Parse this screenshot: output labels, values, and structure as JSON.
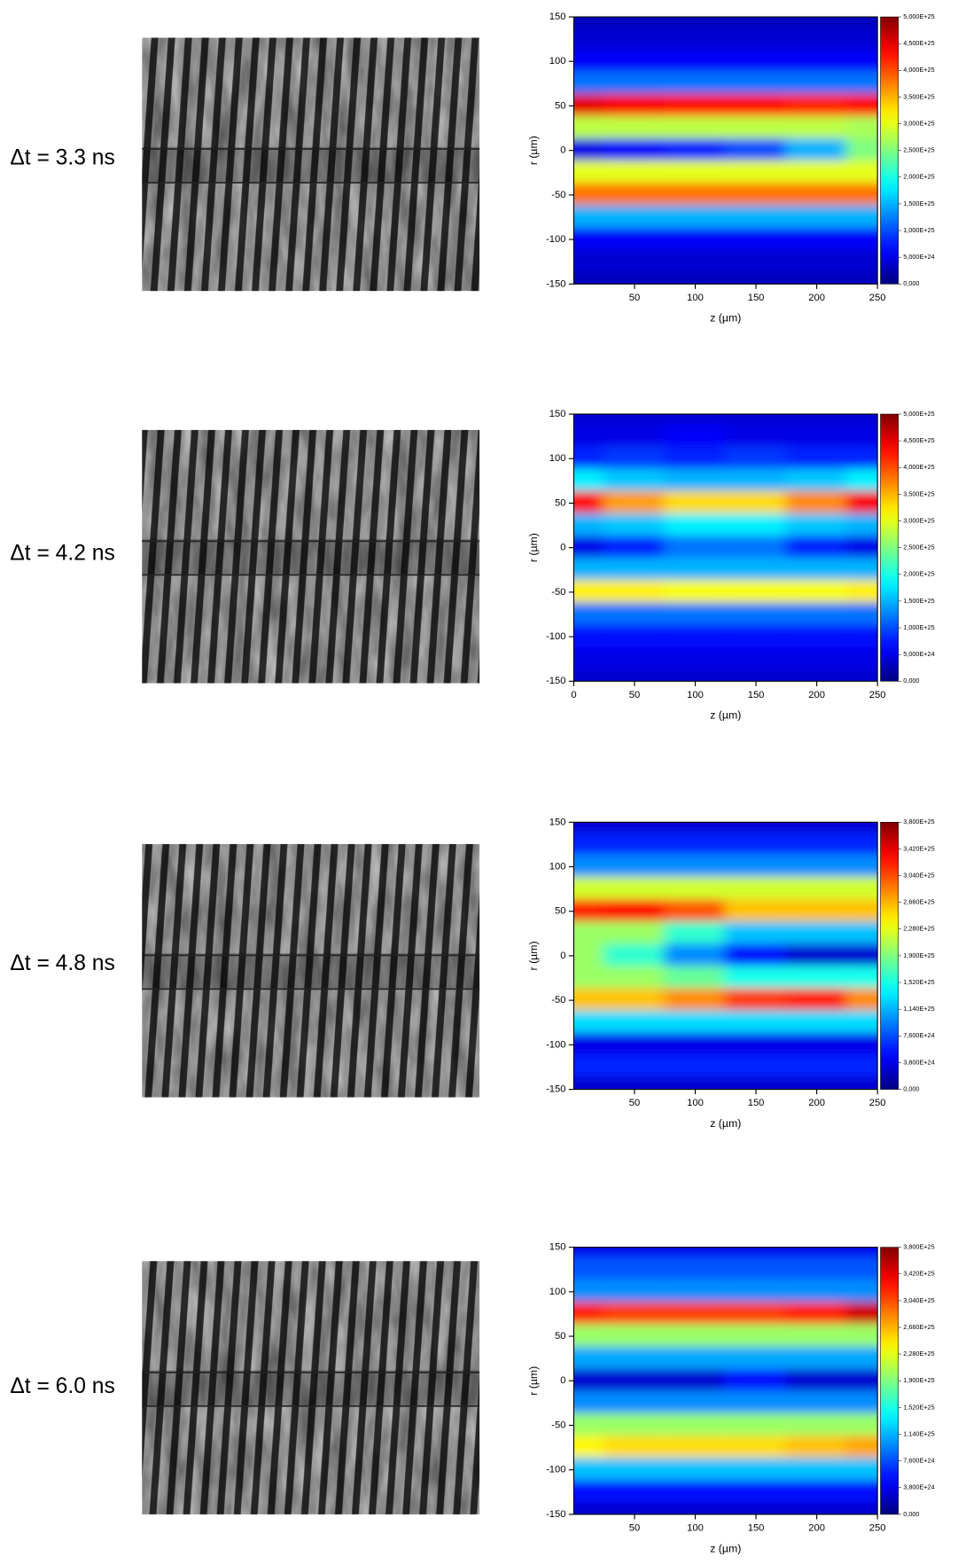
{
  "chart_data": [
    {
      "type": "heatmap",
      "annotation": "Δt = 3.3 ns",
      "xlabel": "z (µm)",
      "ylabel": "r (µm)",
      "colormap": "jet",
      "x": [
        0,
        50,
        100,
        150,
        200,
        250
      ],
      "y": [
        150,
        125,
        100,
        75,
        50,
        25,
        0,
        -25,
        -50,
        -75,
        -100,
        -125,
        -150
      ],
      "values": [
        [
          3e+24,
          3e+24,
          3e+24,
          3e+24,
          3e+24,
          3e+24
        ],
        [
          4e+24,
          4e+24,
          4e+24,
          4e+24,
          4e+24,
          4e+24
        ],
        [
          6e+24,
          6e+24,
          6e+24,
          6e+24,
          6e+24,
          6e+24
        ],
        [
          1.2e+25,
          1.2e+25,
          1.2e+25,
          1.2e+25,
          1.2e+25,
          1.2e+25
        ],
        [
          4.5e+25,
          4.4e+25,
          4.3e+25,
          4.3e+25,
          4.2e+25,
          4.3e+25
        ],
        [
          2.8e+25,
          2.8e+25,
          2.8e+25,
          2.8e+25,
          2.8e+25,
          2.7e+25
        ],
        [
          5e+24,
          6e+24,
          8e+24,
          1e+25,
          1.5e+25,
          2.5e+25
        ],
        [
          3e+25,
          3e+25,
          3e+25,
          3e+25,
          3e+25,
          3e+25
        ],
        [
          3.8e+25,
          3.8e+25,
          3.8e+25,
          3.8e+25,
          3.8e+25,
          3.8e+25
        ],
        [
          1.5e+25,
          1.5e+25,
          1.5e+25,
          1.5e+25,
          1.5e+25,
          1.5e+25
        ],
        [
          6e+24,
          6e+24,
          6e+24,
          6e+24,
          6e+24,
          6e+24
        ],
        [
          4e+24,
          4e+24,
          4e+24,
          4e+24,
          4e+24,
          4e+24
        ],
        [
          3e+24,
          3e+24,
          3e+24,
          3e+24,
          3e+24,
          3e+24
        ]
      ],
      "xlim": [
        0,
        250
      ],
      "xticks": [
        50,
        100,
        150,
        200,
        250
      ],
      "ylim": [
        -150,
        150
      ],
      "yticks": [
        150,
        100,
        50,
        0,
        -50,
        -100,
        -150
      ],
      "zlim": [
        0,
        5e+25
      ],
      "zticks": [
        {
          "value": 0,
          "label": "0,000"
        },
        {
          "value": 5e+24,
          "label": "5,000E+24"
        },
        {
          "value": 1e+25,
          "label": "1,000E+25"
        },
        {
          "value": 1.5e+25,
          "label": "1,500E+25"
        },
        {
          "value": 2e+25,
          "label": "2,000E+25"
        },
        {
          "value": 2.5e+25,
          "label": "2,500E+25"
        },
        {
          "value": 3e+25,
          "label": "3,000E+25"
        },
        {
          "value": 3.5e+25,
          "label": "3,500E+25"
        },
        {
          "value": 4e+25,
          "label": "4,000E+25"
        },
        {
          "value": 4.5e+25,
          "label": "4,500E+25"
        },
        {
          "value": 5e+25,
          "label": "5,000E+25"
        }
      ]
    },
    {
      "type": "heatmap",
      "annotation": "Δt = 4.2 ns",
      "xlabel": "z (µm)",
      "ylabel": "r (µm)",
      "colormap": "jet",
      "x": [
        0,
        50,
        100,
        150,
        200,
        250
      ],
      "y": [
        150,
        125,
        100,
        75,
        50,
        25,
        0,
        -25,
        -50,
        -75,
        -100,
        -125,
        -150
      ],
      "values": [
        [
          4e+24,
          4e+24,
          4e+24,
          4e+24,
          4e+24,
          4e+24
        ],
        [
          5e+24,
          5e+24,
          6e+24,
          5e+24,
          5e+24,
          5e+24
        ],
        [
          8e+24,
          9e+24,
          8e+24,
          9e+24,
          8e+24,
          8e+24
        ],
        [
          1.8e+25,
          1.6e+25,
          1.5e+25,
          1.5e+25,
          1.6e+25,
          1.8e+25
        ],
        [
          4.3e+25,
          3.6e+25,
          3.3e+25,
          3.3e+25,
          3.7e+25,
          4.4e+25
        ],
        [
          1.5e+25,
          1.6e+25,
          1.8e+25,
          1.8e+25,
          1.6e+25,
          1.5e+25
        ],
        [
          5e+24,
          8e+24,
          1.2e+25,
          1.2e+25,
          8e+24,
          5e+24
        ],
        [
          1.5e+25,
          1.5e+25,
          1.5e+25,
          1.5e+25,
          1.5e+25,
          1.5e+25
        ],
        [
          3.2e+25,
          3.2e+25,
          3.1e+25,
          3.1e+25,
          3.1e+25,
          3.2e+25
        ],
        [
          1.2e+25,
          1.2e+25,
          1.2e+25,
          1.2e+25,
          1.2e+25,
          1.2e+25
        ],
        [
          7e+24,
          7e+24,
          7e+24,
          7e+24,
          7e+24,
          7e+24
        ],
        [
          5e+24,
          5e+24,
          5e+24,
          5e+24,
          5e+24,
          5e+24
        ],
        [
          4e+24,
          4e+24,
          4e+24,
          4e+24,
          4e+24,
          4e+24
        ]
      ],
      "xlim": [
        0,
        250
      ],
      "xticks": [
        0,
        50,
        100,
        150,
        200,
        250
      ],
      "ylim": [
        -150,
        150
      ],
      "yticks": [
        150,
        100,
        50,
        0,
        -50,
        -100,
        -150
      ],
      "zlim": [
        0,
        5e+25
      ],
      "zticks": [
        {
          "value": 0,
          "label": "0,000"
        },
        {
          "value": 5e+24,
          "label": "5,000E+24"
        },
        {
          "value": 1e+25,
          "label": "1,000E+25"
        },
        {
          "value": 1.5e+25,
          "label": "1,500E+25"
        },
        {
          "value": 2e+25,
          "label": "2,000E+25"
        },
        {
          "value": 2.5e+25,
          "label": "2,500E+25"
        },
        {
          "value": 3e+25,
          "label": "3,000E+25"
        },
        {
          "value": 3.5e+25,
          "label": "3,500E+25"
        },
        {
          "value": 4e+25,
          "label": "4,000E+25"
        },
        {
          "value": 4.5e+25,
          "label": "4,500E+25"
        },
        {
          "value": 5e+25,
          "label": "5,000E+25"
        }
      ]
    },
    {
      "type": "heatmap",
      "annotation": "Δt = 4.8 ns",
      "xlabel": "z (µm)",
      "ylabel": "r (µm)",
      "colormap": "jet",
      "x": [
        0,
        50,
        100,
        150,
        200,
        250
      ],
      "y": [
        150,
        125,
        100,
        75,
        50,
        25,
        0,
        -25,
        -50,
        -75,
        -100,
        -125,
        -150
      ],
      "values": [
        [
          3e+24,
          3e+24,
          3e+24,
          3e+24,
          3e+24,
          3e+24
        ],
        [
          6e+24,
          6e+24,
          6e+24,
          6e+24,
          6e+24,
          6e+24
        ],
        [
          1e+25,
          1e+25,
          1e+25,
          1e+25,
          1e+25,
          1e+25
        ],
        [
          2.2e+25,
          2.2e+25,
          2.2e+25,
          2.2e+25,
          2.2e+25,
          2.2e+25
        ],
        [
          3.2e+25,
          3.3e+25,
          3e+25,
          2.6e+25,
          2.6e+25,
          2.6e+25
        ],
        [
          2e+25,
          2e+25,
          1.6e+25,
          1.2e+25,
          1.2e+25,
          1.2e+25
        ],
        [
          2e+25,
          1.6e+25,
          1e+25,
          5e+24,
          3e+24,
          3e+24
        ],
        [
          2e+25,
          2e+25,
          1.8e+25,
          1.5e+25,
          1.5e+25,
          1.5e+25
        ],
        [
          2.6e+25,
          2.6e+25,
          2.8e+25,
          3.1e+25,
          3.2e+25,
          2.8e+25
        ],
        [
          1.3e+25,
          1.3e+25,
          1.3e+25,
          1.3e+25,
          1.3e+25,
          1.3e+25
        ],
        [
          4e+24,
          4e+24,
          4e+24,
          4e+24,
          4e+24,
          4e+24
        ],
        [
          6e+24,
          6e+24,
          6e+24,
          6e+24,
          6e+24,
          6e+24
        ],
        [
          3e+24,
          3e+24,
          3e+24,
          3e+24,
          3e+24,
          3e+24
        ]
      ],
      "xlim": [
        0,
        250
      ],
      "xticks": [
        50,
        100,
        150,
        200,
        250
      ],
      "ylim": [
        -150,
        150
      ],
      "yticks": [
        150,
        100,
        50,
        0,
        -50,
        -100,
        -150
      ],
      "zlim": [
        0,
        3.8e+25
      ],
      "zticks": [
        {
          "value": 0,
          "label": "0,000"
        },
        {
          "value": 3.8e+24,
          "label": "3,800E+24"
        },
        {
          "value": 7.6e+24,
          "label": "7,600E+24"
        },
        {
          "value": 1.14e+25,
          "label": "1,140E+25"
        },
        {
          "value": 1.52e+25,
          "label": "1,520E+25"
        },
        {
          "value": 1.9e+25,
          "label": "1,900E+25"
        },
        {
          "value": 2.28e+25,
          "label": "2,280E+25"
        },
        {
          "value": 2.66e+25,
          "label": "2,660E+25"
        },
        {
          "value": 3.04e+25,
          "label": "3,040E+25"
        },
        {
          "value": 3.42e+25,
          "label": "3,420E+25"
        },
        {
          "value": 3.8e+25,
          "label": "3,800E+25"
        }
      ]
    },
    {
      "type": "heatmap",
      "annotation": "Δt = 6.0 ns",
      "xlabel": "z (µm)",
      "ylabel": "r (µm)",
      "colormap": "jet",
      "x": [
        0,
        50,
        100,
        150,
        200,
        250
      ],
      "y": [
        150,
        125,
        100,
        75,
        50,
        25,
        0,
        -25,
        -50,
        -75,
        -100,
        -125,
        -150
      ],
      "values": [
        [
          4e+24,
          4e+24,
          4e+24,
          4e+24,
          4e+24,
          4e+24
        ],
        [
          8e+24,
          8e+24,
          8e+24,
          8e+24,
          8e+24,
          8e+24
        ],
        [
          1e+25,
          1e+25,
          1e+25,
          1e+25,
          1e+25,
          1e+25
        ],
        [
          3.2e+25,
          3.1e+25,
          3.1e+25,
          3.1e+25,
          3.2e+25,
          3.5e+25
        ],
        [
          2e+25,
          2e+25,
          2e+25,
          2e+25,
          2e+25,
          2e+25
        ],
        [
          1.1e+25,
          1.1e+25,
          1.1e+25,
          1.1e+25,
          1.1e+25,
          1.1e+25
        ],
        [
          3e+24,
          3e+24,
          3e+24,
          5e+24,
          3e+24,
          3e+24
        ],
        [
          1e+25,
          1e+25,
          1e+25,
          1e+25,
          1e+25,
          1e+25
        ],
        [
          2e+25,
          2e+25,
          2e+25,
          2e+25,
          2e+25,
          2e+25
        ],
        [
          2.4e+25,
          2.5e+25,
          2.5e+25,
          2.5e+25,
          2.6e+25,
          2.7e+25
        ],
        [
          1.2e+25,
          1.2e+25,
          1.2e+25,
          1.2e+25,
          1.2e+25,
          1.2e+25
        ],
        [
          5e+24,
          5e+24,
          5e+24,
          5e+24,
          5e+24,
          5e+24
        ],
        [
          3e+24,
          3e+24,
          3e+24,
          3e+24,
          3e+24,
          3e+24
        ]
      ],
      "xlim": [
        0,
        250
      ],
      "xticks": [
        50,
        100,
        150,
        200,
        250
      ],
      "ylim": [
        -150,
        150
      ],
      "yticks": [
        150,
        100,
        50,
        0,
        -50,
        -100,
        -150
      ],
      "zlim": [
        0,
        3.8e+25
      ],
      "zticks": [
        {
          "value": 0,
          "label": "0,000"
        },
        {
          "value": 3.8e+24,
          "label": "3,800E+24"
        },
        {
          "value": 7.6e+24,
          "label": "7,600E+24"
        },
        {
          "value": 1.14e+25,
          "label": "1,140E+25"
        },
        {
          "value": 1.52e+25,
          "label": "1,520E+25"
        },
        {
          "value": 1.9e+25,
          "label": "1,900E+25"
        },
        {
          "value": 2.28e+25,
          "label": "2,280E+25"
        },
        {
          "value": 2.66e+25,
          "label": "2,660E+25"
        },
        {
          "value": 3.04e+25,
          "label": "3,040E+25"
        },
        {
          "value": 3.42e+25,
          "label": "3,420E+25"
        },
        {
          "value": 3.8e+25,
          "label": "3,800E+25"
        }
      ]
    }
  ]
}
